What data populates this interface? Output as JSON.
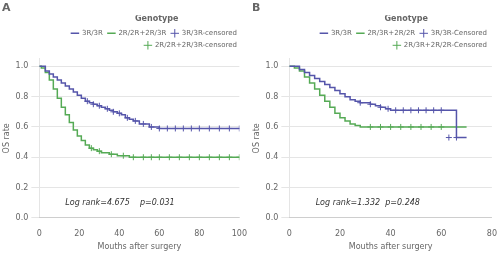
{
  "chart_data": [
    {
      "type": "line",
      "title": "A",
      "x_label": "Mouths after surgery",
      "y_label": "OS rate",
      "xlim": [
        0,
        100
      ],
      "ylim": [
        0.0,
        1.05
      ],
      "xticks": [
        0,
        20,
        40,
        60,
        80,
        100
      ],
      "yticks": [
        {
          "value": 0.0,
          "label": "0.0"
        },
        0.2,
        0.4,
        0.6,
        0.8,
        {
          "value": 1.0,
          "label": "1.0"
        }
      ],
      "grid": "y",
      "legend": "upper right",
      "legend_title": "Genotype",
      "annotation": "Log rank=4.675    p=0.031",
      "series": [
        {
          "name": "3R/3R",
          "type": "step",
          "color": "#5555aa",
          "x": [
            0,
            1,
            3,
            5,
            7,
            9,
            11,
            13,
            15,
            17,
            19,
            21,
            23,
            25,
            27,
            29,
            31,
            33,
            35,
            37,
            39,
            41,
            43,
            45,
            47,
            50,
            55,
            60,
            65,
            70,
            75,
            80,
            85,
            90,
            95,
            100
          ],
          "values": [
            1.0,
            1.0,
            0.97,
            0.95,
            0.93,
            0.91,
            0.89,
            0.87,
            0.85,
            0.83,
            0.81,
            0.79,
            0.77,
            0.76,
            0.75,
            0.74,
            0.73,
            0.72,
            0.71,
            0.7,
            0.69,
            0.68,
            0.66,
            0.65,
            0.64,
            0.62,
            0.6,
            0.59,
            0.59,
            0.59,
            0.59,
            0.59,
            0.59,
            0.59,
            0.59,
            0.59
          ]
        },
        {
          "name": "2R/2R+2R/3R",
          "type": "step",
          "color": "#55aa55",
          "x": [
            0,
            1,
            3,
            5,
            7,
            9,
            11,
            13,
            15,
            17,
            19,
            21,
            23,
            25,
            27,
            29,
            31,
            33,
            35,
            37,
            39,
            41,
            43,
            45,
            47,
            50,
            55,
            60,
            65,
            70,
            75,
            80,
            85,
            90,
            95,
            100
          ],
          "values": [
            1.0,
            0.99,
            0.96,
            0.91,
            0.85,
            0.79,
            0.73,
            0.68,
            0.63,
            0.58,
            0.54,
            0.51,
            0.48,
            0.46,
            0.45,
            0.44,
            0.43,
            0.43,
            0.42,
            0.42,
            0.41,
            0.41,
            0.41,
            0.4,
            0.4,
            0.4,
            0.4,
            0.4,
            0.4,
            0.4,
            0.4,
            0.4,
            0.4,
            0.4,
            0.4,
            0.4
          ]
        },
        {
          "name": "3R/3R-censored",
          "type": "scatter",
          "marker": "+",
          "color": "#5555aa",
          "x": [
            24,
            27,
            30,
            34,
            37,
            40,
            44,
            48,
            52,
            56,
            60,
            64,
            68,
            72,
            76,
            80,
            85,
            90,
            95,
            100
          ],
          "values": [
            0.77,
            0.75,
            0.74,
            0.72,
            0.7,
            0.69,
            0.66,
            0.64,
            0.62,
            0.6,
            0.59,
            0.59,
            0.59,
            0.59,
            0.59,
            0.59,
            0.59,
            0.59,
            0.59,
            0.59
          ]
        },
        {
          "name": "2R/2R+2R/3R-censored",
          "type": "scatter",
          "marker": "+",
          "color": "#55aa55",
          "x": [
            26,
            30,
            36,
            42,
            47,
            52,
            56,
            60,
            65,
            70,
            75,
            80,
            85,
            90,
            95,
            100
          ],
          "values": [
            0.46,
            0.44,
            0.42,
            0.41,
            0.4,
            0.4,
            0.4,
            0.4,
            0.4,
            0.4,
            0.4,
            0.4,
            0.4,
            0.4,
            0.4,
            0.4
          ]
        }
      ]
    },
    {
      "type": "line",
      "title": "B",
      "x_label": "Mouths after surgery",
      "y_label": "OS rate",
      "xlim": [
        0,
        80
      ],
      "ylim": [
        0.0,
        1.05
      ],
      "xticks": [
        0,
        20,
        40,
        60,
        80
      ],
      "yticks": [
        {
          "value": 0.0,
          "label": "0.0"
        },
        0.2,
        0.4,
        0.6,
        0.8,
        {
          "value": 1.0,
          "label": "1.0"
        }
      ],
      "grid": "y",
      "legend": "upper right",
      "legend_title": "Genotype",
      "annotation": "Log rank=1.332  p=0.248",
      "series": [
        {
          "name": "3R/3R",
          "type": "step",
          "color": "#5555aa",
          "x": [
            0,
            2,
            4,
            6,
            8,
            10,
            12,
            14,
            16,
            18,
            20,
            22,
            24,
            26,
            28,
            30,
            32,
            34,
            36,
            38,
            40,
            42,
            44,
            46,
            48,
            50,
            52,
            54,
            56,
            58,
            60,
            62,
            64,
            66,
            68,
            70
          ],
          "values": [
            1.0,
            1.0,
            0.98,
            0.96,
            0.94,
            0.92,
            0.9,
            0.88,
            0.86,
            0.84,
            0.82,
            0.8,
            0.78,
            0.77,
            0.76,
            0.76,
            0.75,
            0.74,
            0.73,
            0.72,
            0.71,
            0.71,
            0.71,
            0.71,
            0.71,
            0.71,
            0.71,
            0.71,
            0.71,
            0.71,
            0.71,
            0.71,
            0.71,
            0.53,
            0.53,
            0.53
          ]
        },
        {
          "name": "2R/3R+2R/2R",
          "type": "step",
          "color": "#55aa55",
          "x": [
            0,
            2,
            4,
            6,
            8,
            10,
            12,
            14,
            16,
            18,
            20,
            22,
            24,
            26,
            28,
            30,
            32,
            34,
            36,
            38,
            40,
            42,
            44,
            46,
            48,
            50,
            52,
            54,
            56,
            58,
            60,
            62,
            64,
            66,
            68,
            70
          ],
          "values": [
            1.0,
            0.99,
            0.97,
            0.93,
            0.89,
            0.85,
            0.81,
            0.77,
            0.73,
            0.69,
            0.66,
            0.64,
            0.62,
            0.61,
            0.6,
            0.6,
            0.6,
            0.6,
            0.6,
            0.6,
            0.6,
            0.6,
            0.6,
            0.6,
            0.6,
            0.6,
            0.6,
            0.6,
            0.6,
            0.6,
            0.6,
            0.6,
            0.6,
            0.6,
            0.6,
            0.6
          ]
        },
        {
          "name": "3R/3R-Censored",
          "type": "scatter",
          "marker": "+",
          "color": "#5555aa",
          "x": [
            28,
            32,
            36,
            39,
            42,
            45,
            48,
            51,
            54,
            57,
            60,
            63,
            66
          ],
          "values": [
            0.76,
            0.75,
            0.73,
            0.72,
            0.71,
            0.71,
            0.71,
            0.71,
            0.71,
            0.71,
            0.71,
            0.53,
            0.53
          ]
        },
        {
          "name": "2R/3R+2R/2R-Censored",
          "type": "scatter",
          "marker": "+",
          "color": "#55aa55",
          "x": [
            32,
            36,
            40,
            44,
            48,
            52,
            56,
            60
          ],
          "values": [
            0.6,
            0.6,
            0.6,
            0.6,
            0.6,
            0.6,
            0.6,
            0.6
          ]
        }
      ]
    }
  ]
}
